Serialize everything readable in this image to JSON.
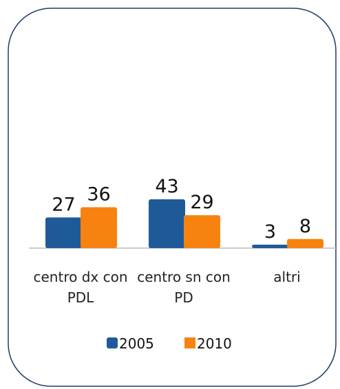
{
  "chart_data": {
    "type": "bar",
    "categories": [
      "centro dx con PDL",
      "centro sn con PD",
      "altri"
    ],
    "series": [
      {
        "name": "2005",
        "color": "#1f5a98",
        "values": [
          27,
          43,
          3
        ]
      },
      {
        "name": "2010",
        "color": "#f7820f",
        "values": [
          36,
          29,
          8
        ]
      }
    ],
    "legend": "bottom"
  }
}
